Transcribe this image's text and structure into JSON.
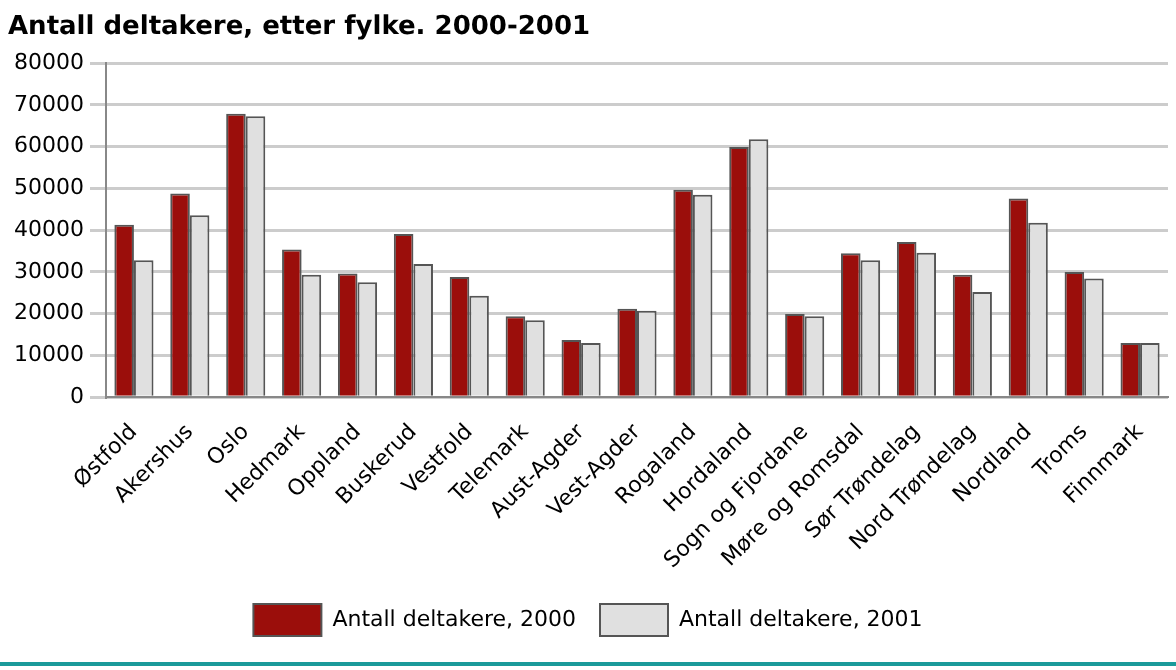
{
  "chart_data": {
    "type": "bar",
    "title": "Antall deltakere, etter fylke. 2000-2001",
    "categories": [
      "Østfold",
      "Akershus",
      "Oslo",
      "Hedmark",
      "Oppland",
      "Buskerud",
      "Vestfold",
      "Telemark",
      "Aust-Agder",
      "Vest-Agder",
      "Rogaland",
      "Hordaland",
      "Sogn og Fjordane",
      "Møre og Romsdal",
      "Sør Trøndelag",
      "Nord Trøndelag",
      "Nordland",
      "Troms",
      "Finnmark"
    ],
    "series": [
      {
        "name": "Antall deltakere, 2000",
        "color": "#9b0e0b",
        "values": [
          41300,
          48800,
          67900,
          35400,
          29600,
          39100,
          28800,
          19400,
          13700,
          21200,
          49700,
          59900,
          19900,
          34500,
          37200,
          29300,
          47600,
          30000,
          13000
        ]
      },
      {
        "name": "Antall deltakere, 2001",
        "color": "#e0e0e0",
        "values": [
          32800,
          43600,
          67300,
          29300,
          27500,
          31900,
          24300,
          18400,
          13000,
          20700,
          48500,
          61800,
          19400,
          32800,
          34600,
          25200,
          41800,
          28400,
          13000
        ]
      }
    ],
    "ylim": [
      0,
      80000
    ],
    "yticks": [
      0,
      10000,
      20000,
      30000,
      40000,
      50000,
      60000,
      70000,
      80000
    ],
    "grid": "y",
    "legend": "bottom"
  }
}
